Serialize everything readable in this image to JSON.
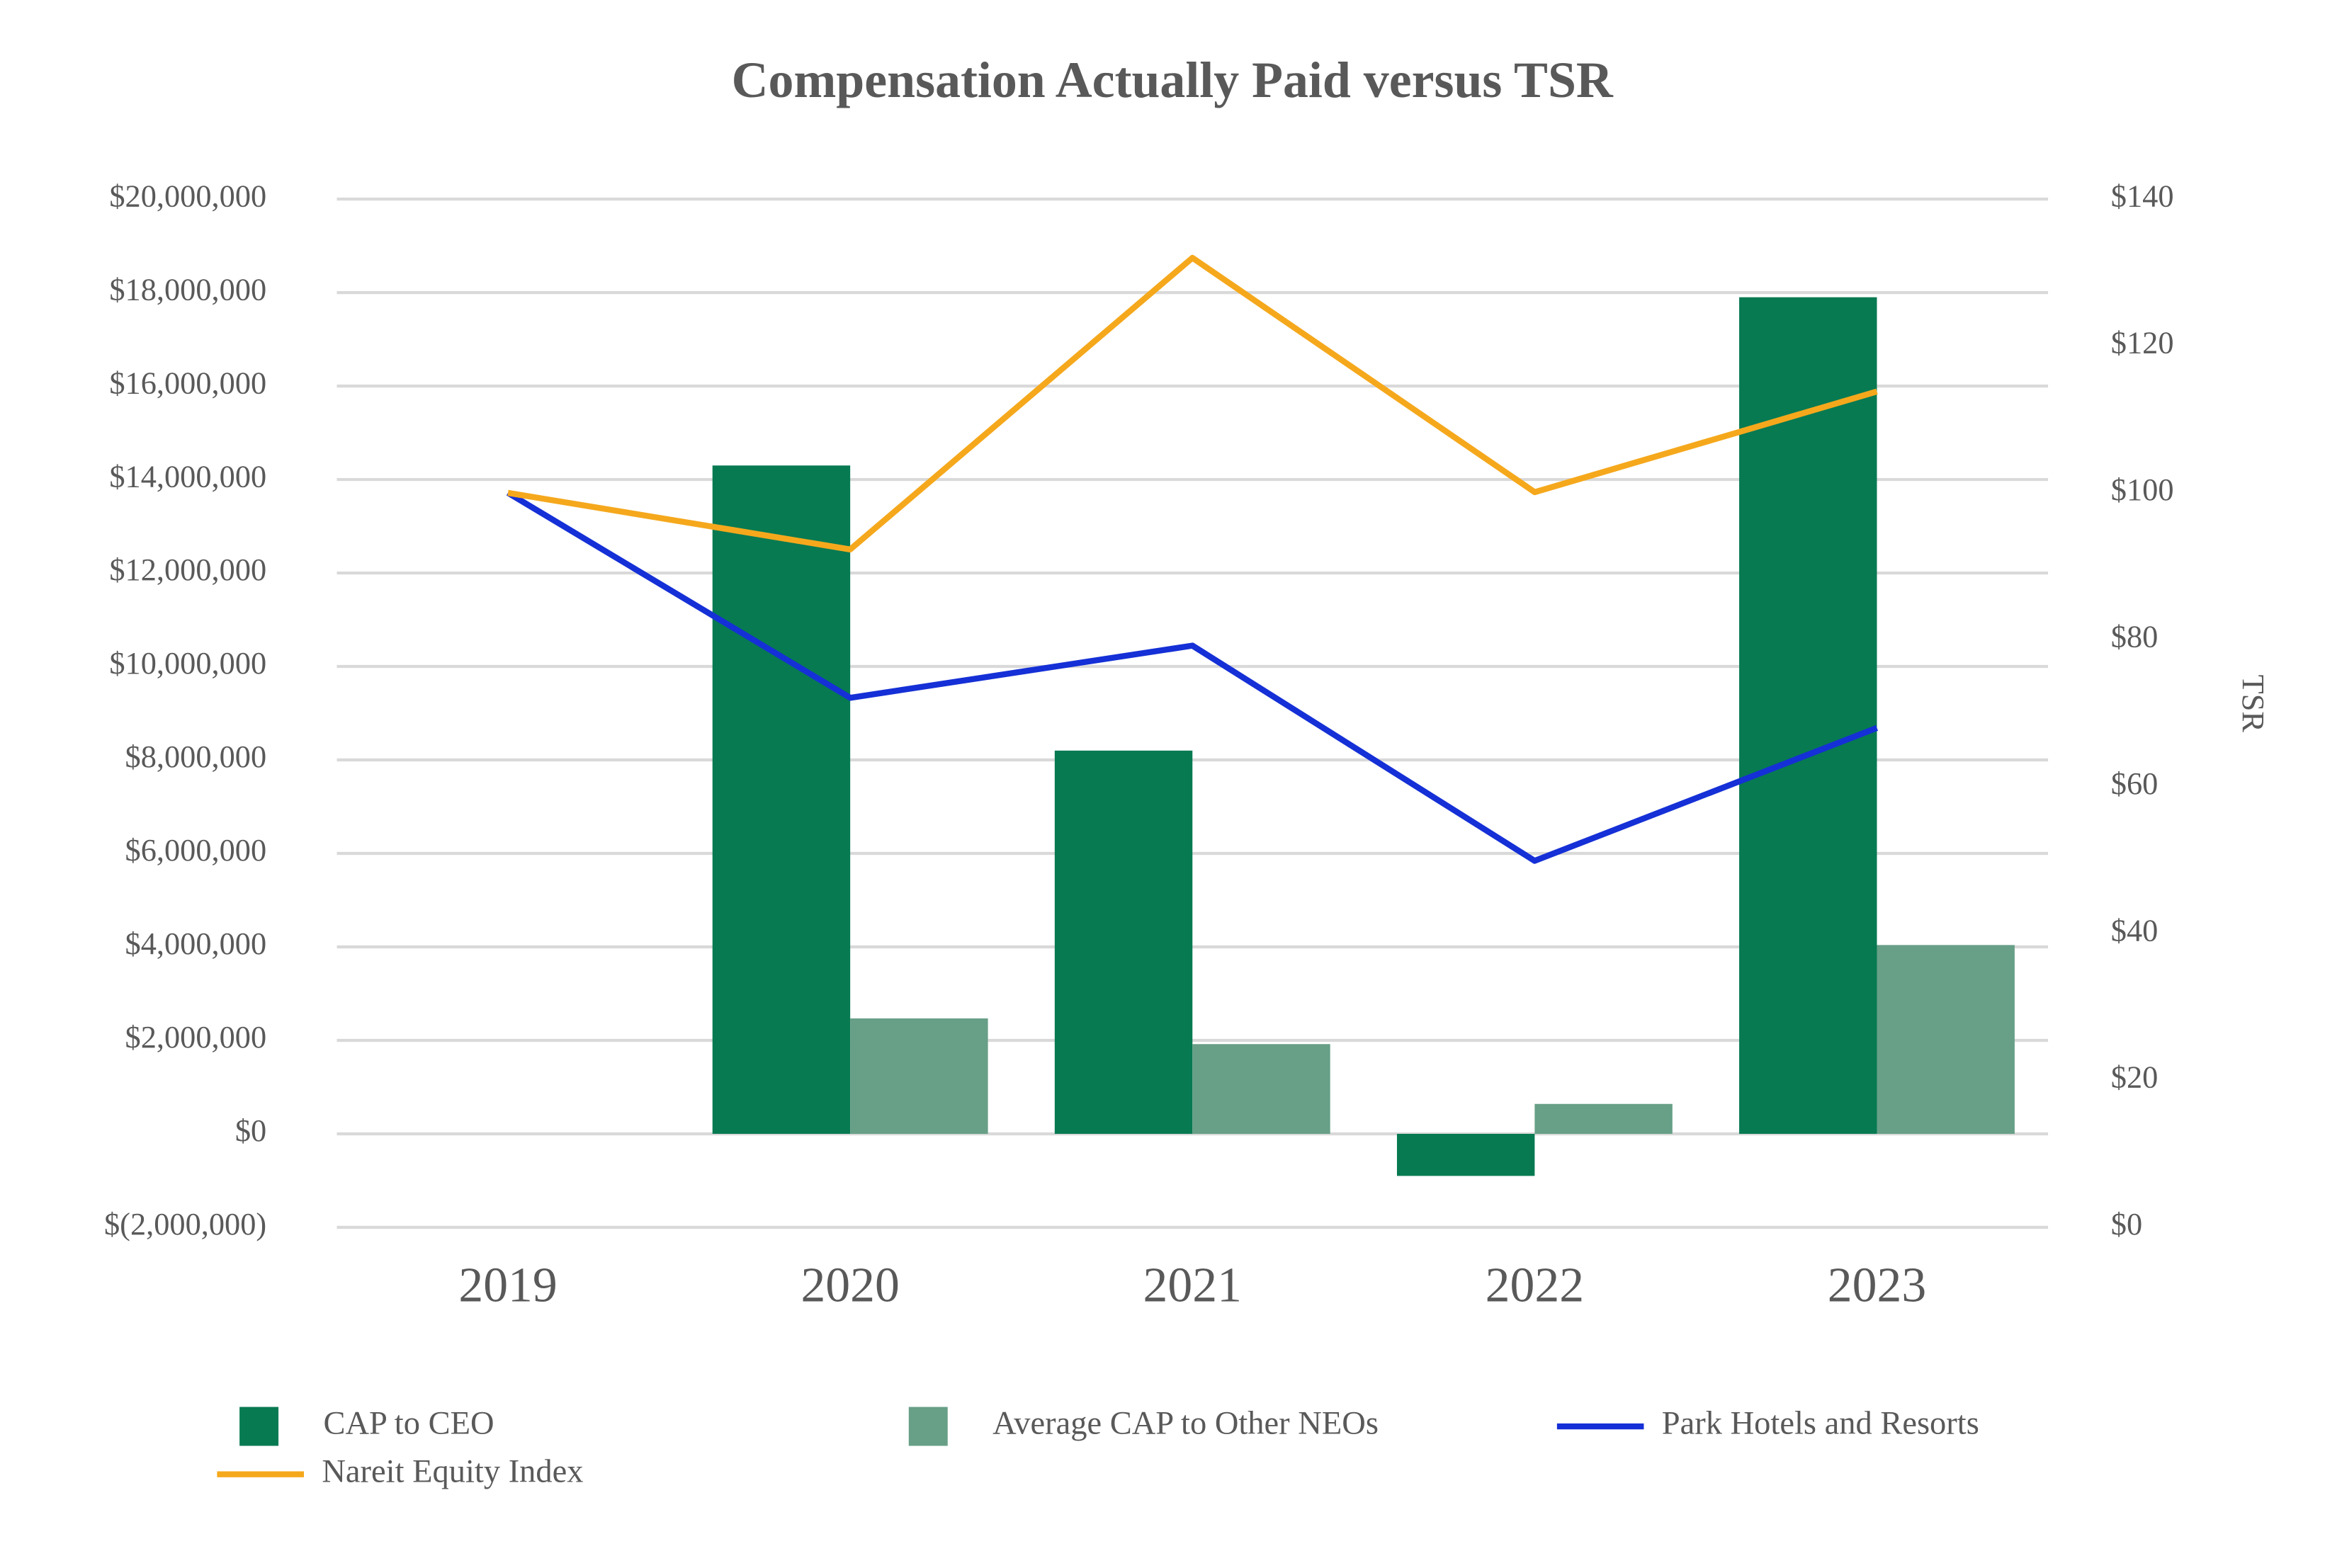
{
  "chart_data": {
    "type": "bar",
    "title": "Compensation Actually Paid versus TSR",
    "categories": [
      "2019",
      "2020",
      "2021",
      "2022",
      "2023"
    ],
    "series": [
      {
        "name": "CAP to CEO",
        "color": "#077a52",
        "values": [
          null,
          14300000,
          8200000,
          -900000,
          17900000
        ]
      },
      {
        "name": "Average CAP to Other NEOs",
        "color": "#679f87",
        "values": [
          null,
          2470000,
          1920000,
          640000,
          4040000
        ]
      },
      {
        "name": "Park Hotels and Resorts",
        "color": "#1530d6",
        "type": "line",
        "axis": "y2",
        "values": [
          100,
          72.1,
          79.2,
          49.9,
          68
        ]
      },
      {
        "name": "Nareit Equity Index",
        "color": "#f5a81c",
        "type": "line",
        "axis": "y2",
        "values": [
          100,
          92.3,
          132,
          100.1,
          113.8
        ]
      }
    ],
    "ylim": [
      -2000000,
      20000000
    ],
    "yticks": [
      {
        "value": -2000000,
        "label": "$(2,000,000)"
      },
      {
        "value": 0,
        "label": "$0"
      },
      {
        "value": 2000000,
        "label": "$2,000,000"
      },
      {
        "value": 4000000,
        "label": "$4,000,000"
      },
      {
        "value": 6000000,
        "label": "$6,000,000"
      },
      {
        "value": 8000000,
        "label": "$8,000,000"
      },
      {
        "value": 10000000,
        "label": "$10,000,000"
      },
      {
        "value": 12000000,
        "label": "$12,000,000"
      },
      {
        "value": 14000000,
        "label": "$14,000,000"
      },
      {
        "value": 16000000,
        "label": "$16,000,000"
      },
      {
        "value": 18000000,
        "label": "$18,000,000"
      },
      {
        "value": 20000000,
        "label": "$20,000,000"
      }
    ],
    "y2lim": [
      0,
      140
    ],
    "y2ticks": [
      {
        "value": 0,
        "label": "$0"
      },
      {
        "value": 20,
        "label": "$20"
      },
      {
        "value": 40,
        "label": "$40"
      },
      {
        "value": 60,
        "label": "$60"
      },
      {
        "value": 80,
        "label": "$80"
      },
      {
        "value": 100,
        "label": "$100"
      },
      {
        "value": 120,
        "label": "$120"
      },
      {
        "value": 140,
        "label": "$140"
      }
    ],
    "y2label": "TSR",
    "grid": true
  }
}
